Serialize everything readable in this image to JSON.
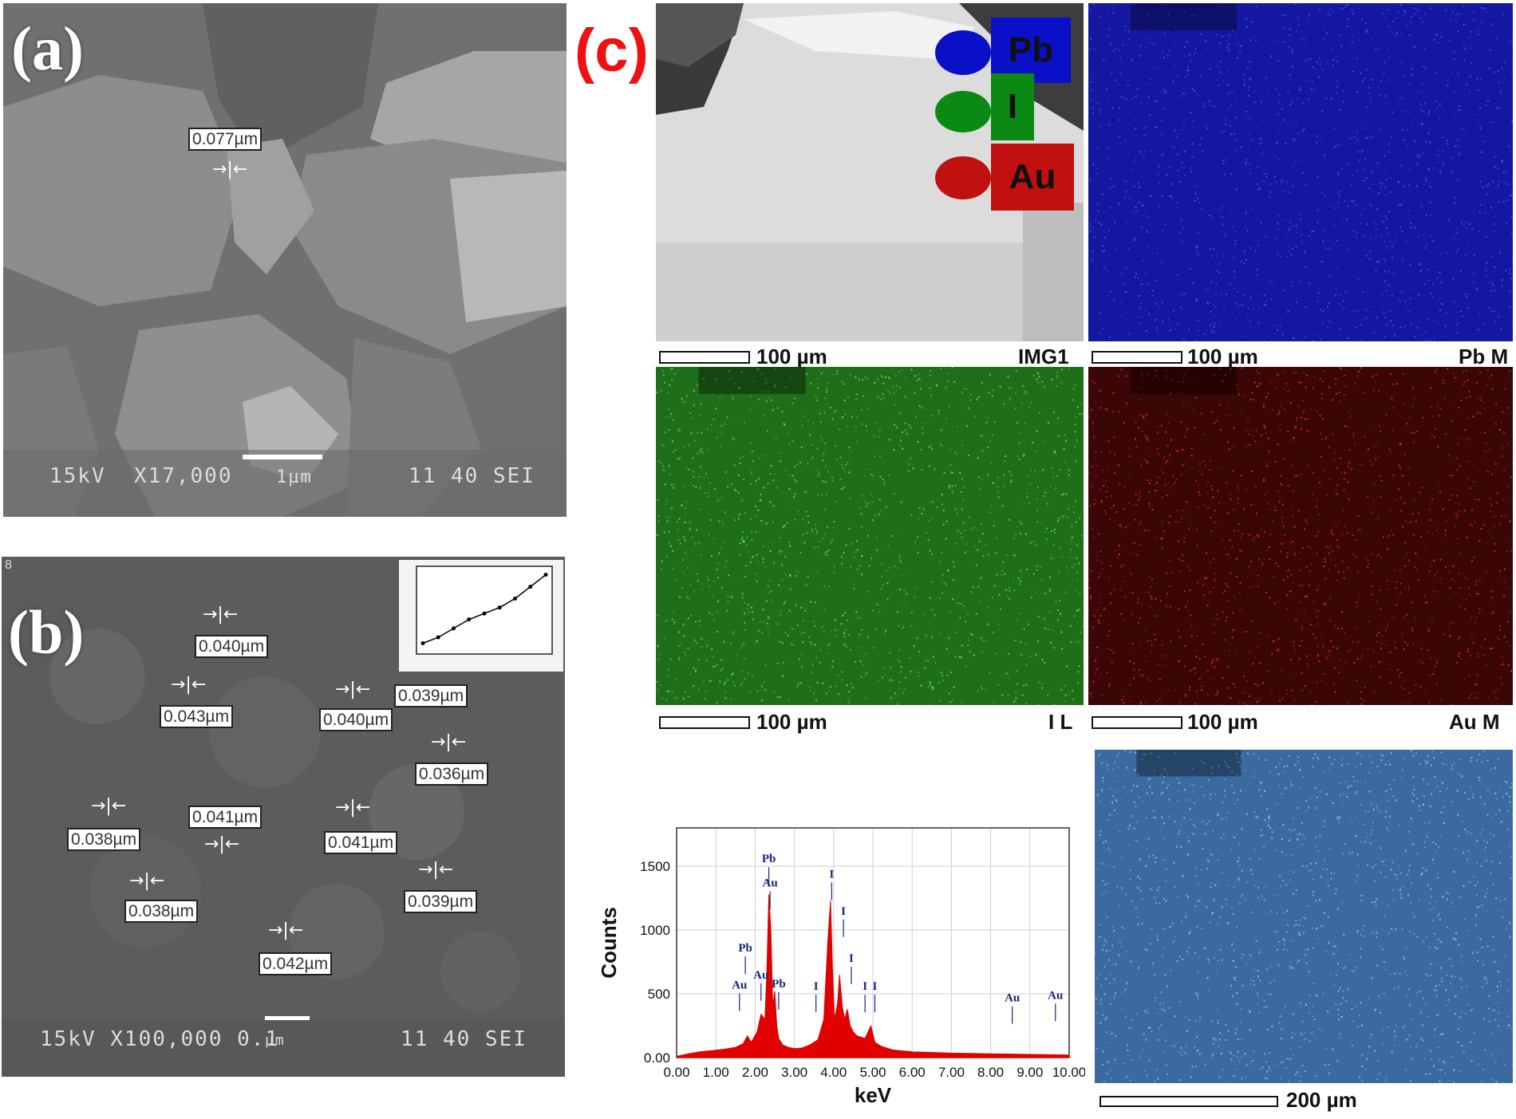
{
  "panel_a": {
    "letter": "(a)",
    "measurement": "0.077µm",
    "footer_left": "15kV  X17,000",
    "scale_label": "1µm",
    "footer_right": "11 40 SEI"
  },
  "panel_b": {
    "letter": "(b)",
    "tag": "8",
    "measurements": [
      "0.040µm",
      "0.043µm",
      "0.040µm",
      "0.039µm",
      "0.036µm",
      "0.038µm",
      "0.041µm",
      "0.041µm",
      "0.038µm",
      "0.039µm",
      "0.042µm"
    ],
    "footer_left": "15kV X100,000 0.1",
    "scale_unit": "µm",
    "footer_right": "11 40 SEI",
    "inset_chart": {
      "type": "line",
      "x": [
        1,
        2,
        3,
        4,
        5,
        6,
        7,
        8,
        9
      ],
      "y": [
        1,
        2,
        3.5,
        5,
        6,
        7,
        8.5,
        10.5,
        12.5
      ]
    }
  },
  "panel_c": {
    "letter": "(c)",
    "legend": [
      {
        "label": "Pb",
        "color": "#0a10c8"
      },
      {
        "label": "I",
        "color": "#0a8a12"
      },
      {
        "label": "Au",
        "color": "#c01010"
      }
    ],
    "maps": {
      "img1": {
        "scale": "100 µm",
        "caption": "IMG1"
      },
      "pb": {
        "scale": "100 µm",
        "caption": "Pb M"
      },
      "i": {
        "scale": "100 µm",
        "caption": "I L"
      },
      "au": {
        "scale": "100 µm",
        "caption": "Au M"
      },
      "combined": {
        "scale": "200 µm"
      }
    }
  },
  "chart_data": {
    "type": "line",
    "xlabel": "keV",
    "ylabel": "Counts",
    "xlim": [
      0,
      10
    ],
    "ylim": [
      0,
      1800
    ],
    "x_ticks": [
      "0.00",
      "1.00",
      "2.00",
      "3.00",
      "4.00",
      "5.00",
      "6.00",
      "7.00",
      "8.00",
      "9.00",
      "10.00"
    ],
    "y_ticks": [
      "0.00",
      "500",
      "1000",
      "1500"
    ],
    "grid": true,
    "series": [
      {
        "color": "#e00000",
        "x": [
          0,
          0.3,
          0.6,
          0.9,
          1.2,
          1.5,
          1.7,
          1.8,
          1.9,
          2.05,
          2.15,
          2.25,
          2.3,
          2.35,
          2.4,
          2.45,
          2.5,
          2.55,
          2.6,
          2.7,
          2.85,
          3.0,
          3.2,
          3.4,
          3.6,
          3.75,
          3.85,
          3.92,
          3.97,
          4.02,
          4.1,
          4.15,
          4.22,
          4.28,
          4.35,
          4.42,
          4.5,
          4.6,
          4.8,
          4.95,
          5.05,
          5.2,
          5.5,
          6,
          7,
          8,
          9,
          10
        ],
        "y": [
          10,
          30,
          45,
          55,
          65,
          80,
          110,
          170,
          120,
          200,
          340,
          300,
          700,
          1280,
          1000,
          400,
          520,
          250,
          150,
          100,
          80,
          70,
          75,
          100,
          140,
          300,
          900,
          1230,
          700,
          300,
          420,
          650,
          400,
          300,
          380,
          250,
          200,
          170,
          150,
          250,
          120,
          90,
          60,
          45,
          35,
          30,
          25,
          20
        ]
      }
    ],
    "peak_labels": [
      {
        "text": "Pb",
        "x": 2.35,
        "y": 1530
      },
      {
        "text": "Au",
        "x": 2.38,
        "y": 1340
      },
      {
        "text": "Pb",
        "x": 1.75,
        "y": 830
      },
      {
        "text": "Au",
        "x": 1.6,
        "y": 540
      },
      {
        "text": "Au",
        "x": 2.15,
        "y": 620
      },
      {
        "text": "Pb",
        "x": 2.6,
        "y": 550
      },
      {
        "text": "I",
        "x": 3.95,
        "y": 1410
      },
      {
        "text": "I",
        "x": 4.25,
        "y": 1120
      },
      {
        "text": "I",
        "x": 4.45,
        "y": 750
      },
      {
        "text": "I",
        "x": 3.55,
        "y": 530
      },
      {
        "text": "I",
        "x": 4.8,
        "y": 530
      },
      {
        "text": "I",
        "x": 5.05,
        "y": 530
      },
      {
        "text": "Au",
        "x": 8.55,
        "y": 440
      },
      {
        "text": "Au",
        "x": 9.65,
        "y": 460
      }
    ]
  }
}
